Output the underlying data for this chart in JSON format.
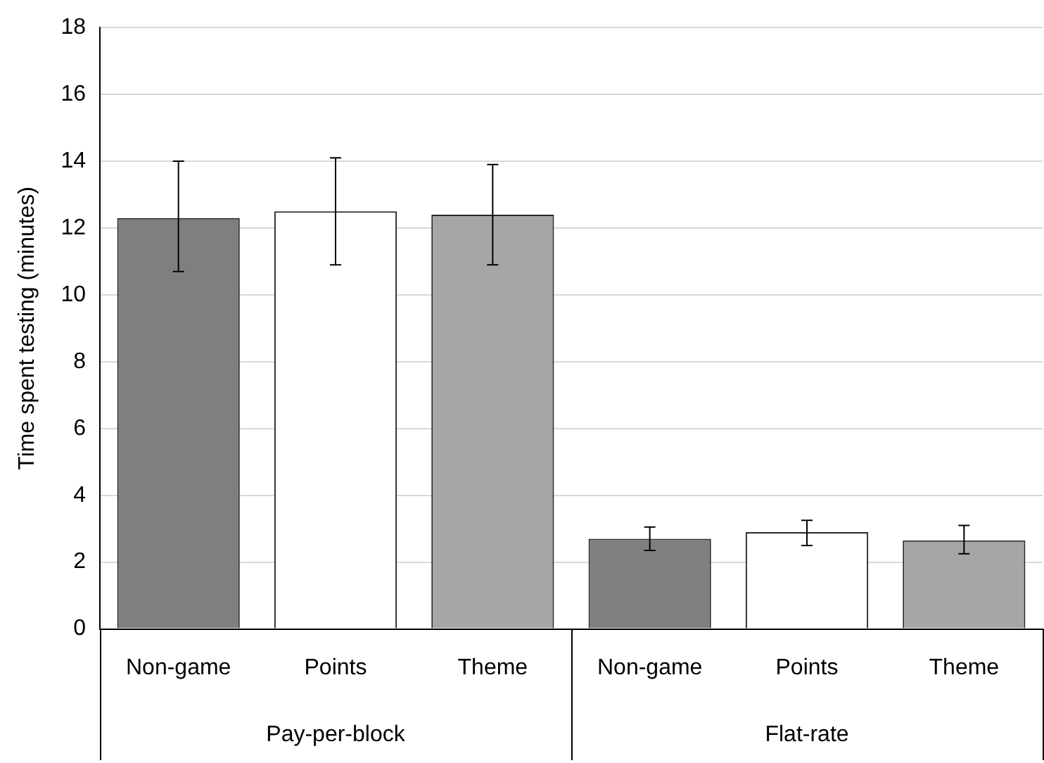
{
  "chart_data": {
    "type": "bar",
    "ylabel": "Time spent testing (minutes)",
    "categories": [
      "Non-game",
      "Points",
      "Theme",
      "Non-game",
      "Points",
      "Theme"
    ],
    "values": [
      12.3,
      12.5,
      12.4,
      2.7,
      2.9,
      2.65
    ],
    "errors": [
      [
        10.7,
        14.0
      ],
      [
        10.9,
        14.1
      ],
      [
        10.9,
        13.9
      ],
      [
        2.35,
        3.05
      ],
      [
        2.5,
        3.25
      ],
      [
        2.25,
        3.1
      ]
    ],
    "colors": [
      "#7f7f7f",
      "#ffffff",
      "#a6a6a6",
      "#7f7f7f",
      "#ffffff",
      "#a6a6a6"
    ],
    "annotations": [
      "Pay-per-block",
      "Flat-rate"
    ],
    "ylim": [
      0,
      18
    ],
    "yticks": [
      0,
      2,
      4,
      6,
      8,
      10,
      12,
      14,
      16,
      18
    ],
    "grid": "y",
    "legend": false
  }
}
